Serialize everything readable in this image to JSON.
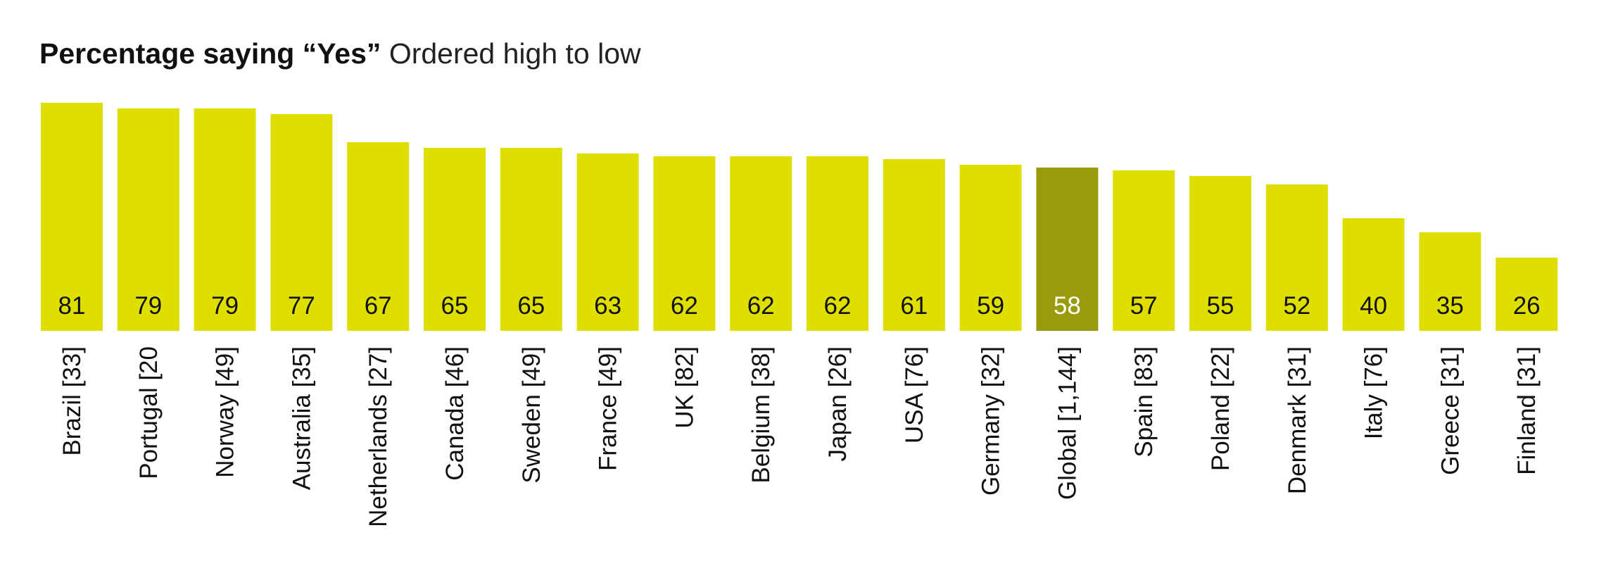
{
  "header": {
    "title_bold": "Percentage saying “Yes”",
    "title_rest": "Ordered high to low"
  },
  "colors": {
    "bar": "#dede00",
    "highlight_bar": "#9a9b0c",
    "label_dark": "#111111",
    "label_light": "#ffffff"
  },
  "chart_data": {
    "type": "bar",
    "title": "Percentage saying “Yes”",
    "subtitle": "Ordered high to low",
    "xlabel": "",
    "ylabel": "",
    "categories": [
      "Brazil [33]",
      "Portugal [20",
      "Norway [49]",
      "Australia [35]",
      "Netherlands [27]",
      "Canada [46]",
      "Sweden [49]",
      "France [49]",
      "UK [82]",
      "Belgium [38]",
      "Japan [26]",
      "USA [76]",
      "Germany [32]",
      "Global [1,144]",
      "Spain [83]",
      "Poland [22]",
      "Denmark [31]",
      "Italy [76]",
      "Greece [31]",
      "Finland [31]"
    ],
    "values": [
      81,
      79,
      79,
      77,
      67,
      65,
      65,
      63,
      62,
      62,
      62,
      61,
      59,
      58,
      57,
      55,
      52,
      40,
      35,
      26
    ],
    "highlight": "Global [1,144]",
    "data_labels": true,
    "grid": false,
    "legend": "none"
  }
}
